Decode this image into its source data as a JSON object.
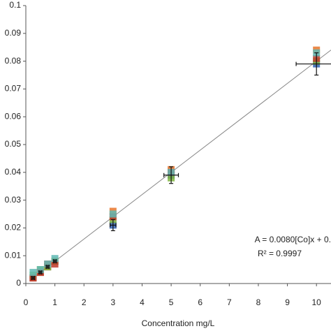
{
  "chart_data": {
    "type": "scatter",
    "x_label": "Concentration mg/L",
    "annotations": [
      "A = 0.0080[Co]x + 0.",
      "R² = 0.9997"
    ],
    "x": [
      0.25,
      0.5,
      0.75,
      1,
      3,
      5,
      10
    ],
    "series": [
      {
        "color": "#2f5fb3",
        "values": [
          0.002,
          0.004,
          0.006,
          0.008,
          0.021,
          0.039,
          0.079
        ],
        "yerr": [
          0.0005,
          0.0005,
          0.0005,
          0.0005,
          0.002,
          0.003,
          0.004
        ],
        "xerr": [
          0.05,
          0.05,
          0.05,
          0.05,
          0.1,
          0.25,
          0.7
        ]
      },
      {
        "color": "#e8762c",
        "values": [
          0.002,
          0.004,
          0.006,
          0.008,
          0.026,
          0.041,
          0.084
        ]
      },
      {
        "color": "#7fb440",
        "values": [
          0.003,
          0.005,
          0.006,
          0.008,
          0.023,
          0.038,
          0.08
        ]
      },
      {
        "color": "#c0392b",
        "values": [
          0.002,
          0.004,
          0.007,
          0.007,
          0.024,
          0.04,
          0.081
        ]
      },
      {
        "color": "#5fb8b4",
        "values": [
          0.004,
          0.005,
          0.007,
          0.009,
          0.025,
          0.04,
          0.083
        ]
      }
    ],
    "fit_line": {
      "color": "#888888",
      "x": [
        0.25,
        10.5
      ],
      "y": [
        0.002,
        0.084
      ]
    },
    "xlim": [
      0,
      10.5
    ],
    "ylim": [
      0,
      0.1
    ],
    "xticks": [
      0,
      1,
      2,
      3,
      4,
      5,
      6,
      7,
      8,
      9,
      10
    ],
    "yticks": [
      0,
      0.01,
      0.02,
      0.03,
      0.04,
      0.05,
      0.06,
      0.07,
      0.08,
      0.09,
      0.1
    ]
  }
}
